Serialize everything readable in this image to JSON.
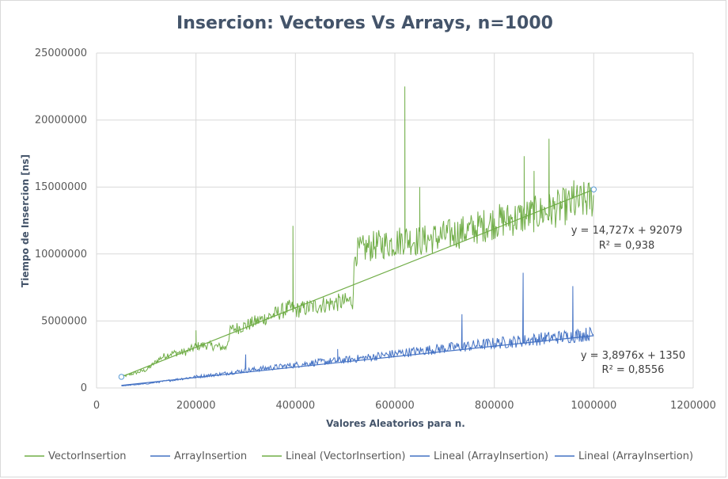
{
  "chart_data": {
    "type": "line",
    "title": "Insercion: Vectores Vs Arrays, n=1000",
    "xlabel": "Valores Aleatorios para n.",
    "ylabel": "Tiempo de Insercion [ns]",
    "xlim": [
      0,
      1200000
    ],
    "ylim": [
      0,
      25000000
    ],
    "x_ticks": [
      "0",
      "200000",
      "400000",
      "600000",
      "800000",
      "1000000",
      "1200000"
    ],
    "y_ticks": [
      "0",
      "5000000",
      "10000000",
      "15000000",
      "20000000",
      "25000000"
    ],
    "grid": true,
    "legend_position": "bottom",
    "colors": {
      "vector": "#70ad47",
      "array": "#4472c4"
    },
    "legend": [
      "VectorInsertion",
      "ArrayInsertion",
      "Lineal (VectorInsertion)",
      "Lineal (ArrayInsertion)",
      "Lineal (ArrayInsertion)"
    ],
    "series": [
      {
        "name": "VectorInsertion",
        "x": [
          50000,
          100000,
          130000,
          150000,
          180000,
          200000,
          220000,
          260000,
          270000,
          300000,
          350000,
          390000,
          400000,
          450000,
          515000,
          520000,
          560000,
          600000,
          620000,
          650000,
          700000,
          750000,
          800000,
          850000,
          900000,
          950000,
          1000000
        ],
        "values": [
          800000,
          1300000,
          2200000,
          2500000,
          2600000,
          3000000,
          3100000,
          2900000,
          4200000,
          4500000,
          5200000,
          5800000,
          5600000,
          6000000,
          6300000,
          9800000,
          10300000,
          10500000,
          10800000,
          10600000,
          11000000,
          11400000,
          12000000,
          12300000,
          12700000,
          13200000,
          13700000
        ],
        "spikes": [
          {
            "x": 200000,
            "y": 4300000
          },
          {
            "x": 395000,
            "y": 12100000
          },
          {
            "x": 620000,
            "y": 22500000
          },
          {
            "x": 650000,
            "y": 15000000
          },
          {
            "x": 860000,
            "y": 17300000
          },
          {
            "x": 880000,
            "y": 16200000
          },
          {
            "x": 910000,
            "y": 18600000
          },
          {
            "x": 960000,
            "y": 15500000
          }
        ]
      },
      {
        "name": "ArrayInsertion",
        "x": [
          50000,
          100000,
          150000,
          200000,
          250000,
          300000,
          350000,
          400000,
          450000,
          500000,
          550000,
          600000,
          650000,
          700000,
          750000,
          800000,
          850000,
          900000,
          950000,
          1000000
        ],
        "values": [
          150000,
          300000,
          550000,
          800000,
          1000000,
          1250000,
          1450000,
          1650000,
          1850000,
          2000000,
          2200000,
          2450000,
          2650000,
          2850000,
          3000000,
          3200000,
          3350000,
          3550000,
          3700000,
          3900000
        ],
        "spikes": [
          {
            "x": 300000,
            "y": 2500000
          },
          {
            "x": 485000,
            "y": 2900000
          },
          {
            "x": 735000,
            "y": 5500000
          },
          {
            "x": 858000,
            "y": 8600000
          },
          {
            "x": 958000,
            "y": 7600000
          }
        ]
      }
    ],
    "trendlines": [
      {
        "series": "Lineal (VectorInsertion)",
        "slope": 14.727,
        "intercept": 92079,
        "x_range": [
          50000,
          1000000
        ],
        "equation": "y = 14,727x + 92079",
        "r2": "R² = 0,938"
      },
      {
        "series": "Lineal (ArrayInsertion)",
        "slope": 3.8976,
        "intercept": 1350,
        "x_range": [
          50000,
          1000000
        ],
        "equation": "y = 3,8976x + 1350",
        "r2": "R² = 0,8556"
      }
    ]
  }
}
